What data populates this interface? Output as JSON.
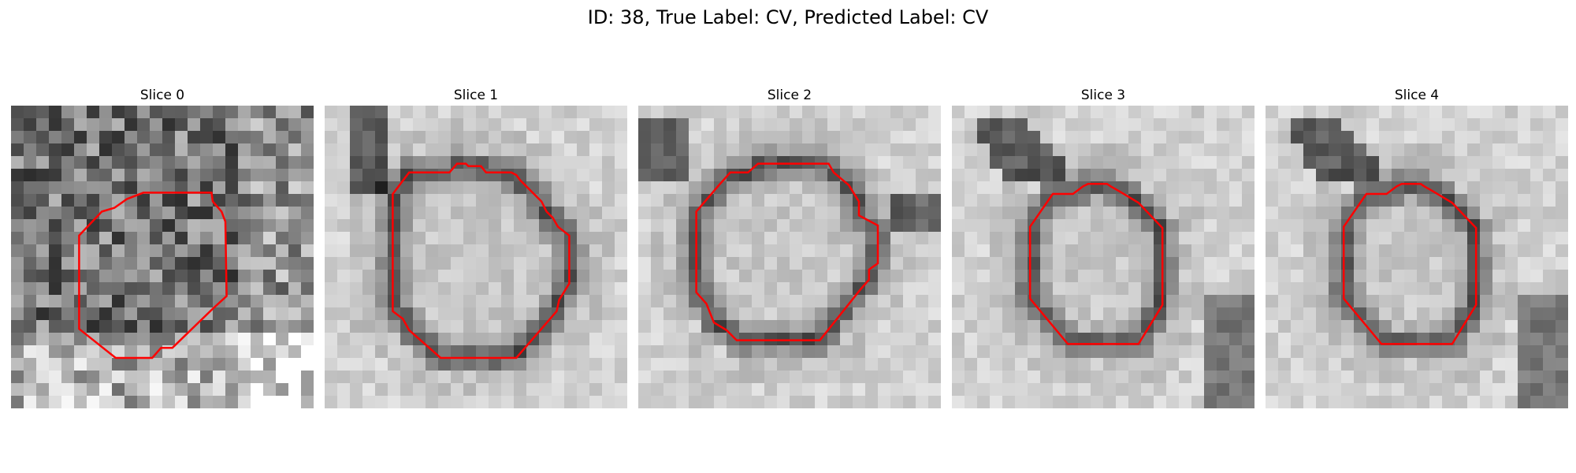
{
  "figure": {
    "title": "ID: 38, True Label: CV, Predicted Label: CV",
    "contour_color": "#ff0000",
    "colormap": "grayscale"
  },
  "slices": [
    {
      "title": "Slice 0",
      "image_seed": 11,
      "image_style": "noisy"
    },
    {
      "title": "Slice 1",
      "image_seed": 23,
      "image_style": "smooth"
    },
    {
      "title": "Slice 2",
      "image_seed": 37,
      "image_style": "smooth"
    },
    {
      "title": "Slice 3",
      "image_seed": 41,
      "image_style": "smooth"
    },
    {
      "title": "Slice 4",
      "image_seed": 41,
      "image_style": "smooth"
    }
  ]
}
